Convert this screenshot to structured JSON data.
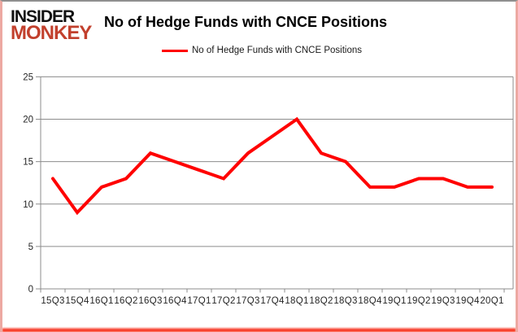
{
  "logo": {
    "line1": "INSIDER",
    "line2": "MONKEY",
    "line2_color": "#c2402d"
  },
  "header": {
    "title": "No of Hedge Funds with CNCE Positions"
  },
  "legend": {
    "label": "No of Hedge Funds with CNCE Positions",
    "swatch_color": "#ff0000"
  },
  "chart_data": {
    "type": "line",
    "title": "No of Hedge Funds with CNCE Positions",
    "categories": [
      "15Q3",
      "15Q4",
      "16Q1",
      "16Q2",
      "16Q3",
      "16Q4",
      "17Q1",
      "17Q2",
      "17Q3",
      "17Q4",
      "18Q1",
      "18Q2",
      "18Q3",
      "18Q4",
      "19Q1",
      "19Q2",
      "19Q3",
      "19Q4",
      "20Q1"
    ],
    "values": [
      13,
      9,
      12,
      13,
      16,
      15,
      14,
      13,
      16,
      18,
      20,
      16,
      15,
      12,
      12,
      13,
      13,
      12,
      12
    ],
    "xlabel": "",
    "ylabel": "",
    "ylim": [
      0,
      25
    ],
    "ytick_step": 5,
    "yticks": [
      0,
      5,
      10,
      15,
      20,
      25
    ],
    "grid": true,
    "legend_position": "top",
    "line_color": "#ff0000",
    "grid_color": "#8c8c8c",
    "axis_text_color": "#262626"
  }
}
